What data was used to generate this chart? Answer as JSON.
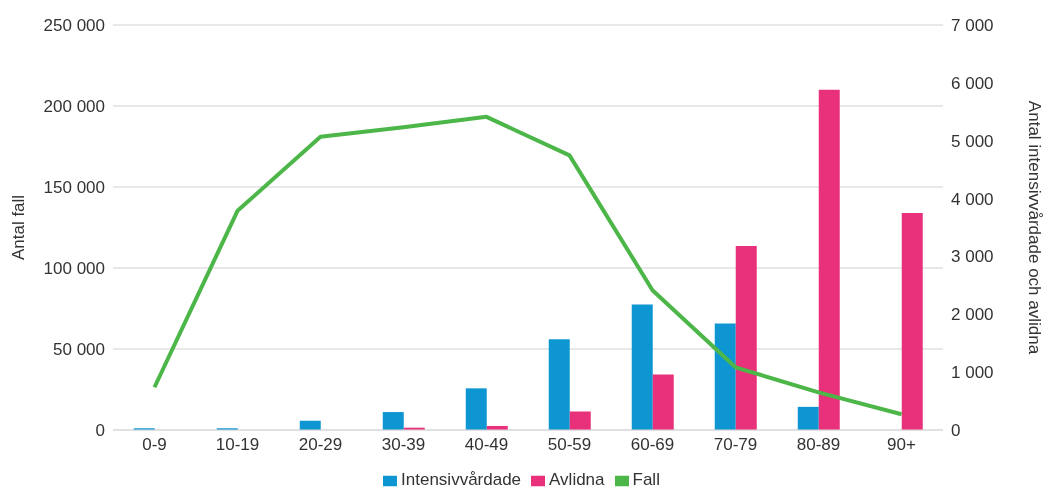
{
  "chart_data": {
    "type": "bar",
    "categories": [
      "0-9",
      "10-19",
      "20-29",
      "30-39",
      "40-49",
      "50-59",
      "60-69",
      "70-79",
      "80-89",
      "90+"
    ],
    "series": [
      {
        "name": "Intensivvårdade",
        "color": "#0e96d2",
        "axis": "y2",
        "values": [
          30,
          30,
          160,
          310,
          720,
          1570,
          2170,
          1840,
          400,
          null
        ]
      },
      {
        "name": "Avlidna",
        "color": "#e8317a",
        "axis": "y2",
        "values": [
          null,
          null,
          null,
          40,
          70,
          320,
          960,
          3180,
          5880,
          3750
        ]
      },
      {
        "name": "Fall",
        "type": "line",
        "color": "#4cb648",
        "values": [
          26400,
          135300,
          181000,
          186900,
          193300,
          169500,
          86300,
          38700,
          23200,
          9700
        ]
      }
    ],
    "ylabel": "Antal fall",
    "y2label": "Antal intensivvårdade och avlidna",
    "ylim": [
      0,
      250000
    ],
    "yticks": [
      0,
      {
        "value": 50000,
        "label": "50 000"
      },
      {
        "value": 100000,
        "label": "100 000"
      },
      {
        "value": 150000,
        "label": "150 000"
      },
      {
        "value": 200000,
        "label": "200 000"
      },
      {
        "value": 250000,
        "label": "250 000"
      }
    ],
    "y2lim": [
      0,
      7000
    ],
    "y2ticks": [
      0,
      {
        "value": 1000,
        "label": "1 000"
      },
      {
        "value": 2000,
        "label": "2 000"
      },
      {
        "value": 3000,
        "label": "3 000"
      },
      {
        "value": 4000,
        "label": "4 000"
      },
      {
        "value": 5000,
        "label": "5 000"
      },
      {
        "value": 6000,
        "label": "6 000"
      },
      {
        "value": 7000,
        "label": "7 000"
      }
    ],
    "grid": "y",
    "legend": "bottom",
    "marker": "none",
    "line_style": "solid"
  }
}
